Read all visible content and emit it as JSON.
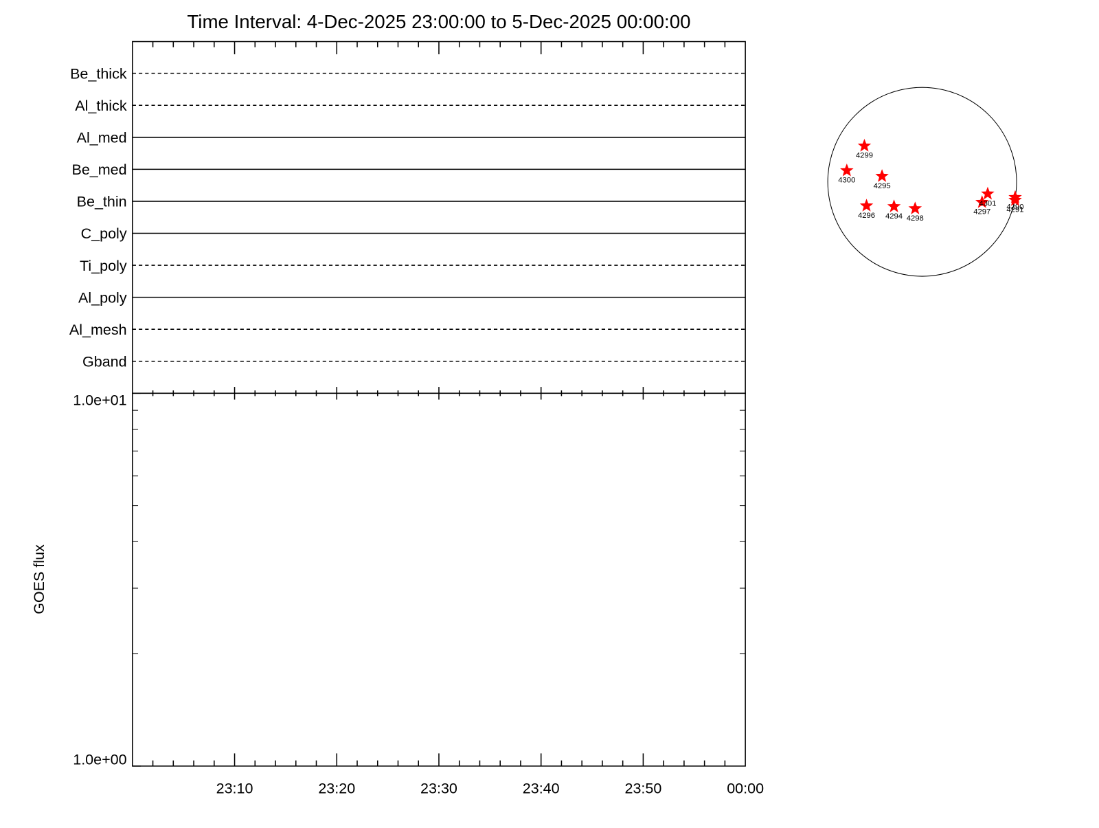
{
  "title": "Time Interval:  4-Dec-2025 23:00:00 to  5-Dec-2025 00:00:00",
  "filters": [
    {
      "name": "Be_thick",
      "style": "dashed"
    },
    {
      "name": "Al_thick",
      "style": "dashed"
    },
    {
      "name": "Al_med",
      "style": "solid"
    },
    {
      "name": "Be_med",
      "style": "solid"
    },
    {
      "name": "Be_thin",
      "style": "solid"
    },
    {
      "name": "C_poly",
      "style": "solid"
    },
    {
      "name": "Ti_poly",
      "style": "dashed"
    },
    {
      "name": "Al_poly",
      "style": "solid"
    },
    {
      "name": "Al_mesh",
      "style": "dashed"
    },
    {
      "name": "Gband",
      "style": "dashed"
    }
  ],
  "flux_panel": {
    "ylabel": "GOES flux",
    "log": true,
    "ylim": [
      1,
      10
    ],
    "yticks": [
      {
        "value": 1,
        "label": "1.0e+00"
      },
      {
        "value": 10,
        "label": "1.0e+01"
      }
    ],
    "xticks": [
      "23:10",
      "23:20",
      "23:30",
      "23:40",
      "23:50",
      "00:00"
    ]
  },
  "sun": {
    "color": "#ff0000",
    "regions": [
      "4299",
      "4300",
      "4295",
      "4296",
      "4294",
      "4298",
      "4297",
      "4301",
      "4290",
      "4291"
    ]
  }
}
